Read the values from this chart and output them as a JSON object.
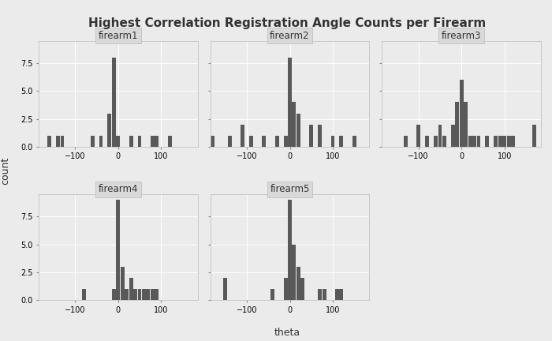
{
  "title": "Highest Correlation Registration Angle Counts per Firearm",
  "xlabel": "theta",
  "ylabel": "count",
  "bar_color": "#595959",
  "bg_color": "#EBEBEB",
  "panel_bg": "#EBEBEB",
  "strip_bg": "#D9D9D9",
  "grid_color": "#FFFFFF",
  "ylim": [
    0,
    9.5
  ],
  "yticks": [
    0.0,
    2.5,
    5.0,
    7.5
  ],
  "xticks": [
    -100,
    0,
    100
  ],
  "bin_edges": [
    -185,
    -175,
    -165,
    -155,
    -145,
    -135,
    -125,
    -115,
    -105,
    -95,
    -85,
    -75,
    -65,
    -55,
    -45,
    -35,
    -25,
    -15,
    -5,
    5,
    15,
    25,
    35,
    45,
    55,
    65,
    75,
    85,
    95,
    105,
    115,
    125,
    135,
    145,
    155,
    165,
    175,
    185
  ],
  "firearm_counts": {
    "firearm1": [
      0,
      0,
      1,
      0,
      1,
      1,
      0,
      0,
      0,
      0,
      0,
      0,
      1,
      0,
      1,
      0,
      3,
      8,
      1,
      0,
      0,
      1,
      0,
      1,
      0,
      0,
      1,
      1,
      0,
      0,
      1,
      0,
      0,
      0,
      0,
      0,
      0
    ],
    "firearm2": [
      1,
      0,
      0,
      0,
      1,
      0,
      0,
      2,
      0,
      1,
      0,
      0,
      1,
      0,
      0,
      1,
      0,
      1,
      8,
      4,
      3,
      0,
      0,
      2,
      0,
      2,
      0,
      0,
      1,
      0,
      1,
      0,
      0,
      1,
      0,
      0,
      0
    ],
    "firearm3": [
      0,
      0,
      0,
      0,
      0,
      1,
      0,
      0,
      2,
      0,
      1,
      0,
      1,
      2,
      1,
      0,
      2,
      4,
      6,
      4,
      1,
      1,
      1,
      0,
      1,
      0,
      1,
      1,
      1,
      1,
      1,
      0,
      0,
      0,
      0,
      2,
      0
    ],
    "firearm4": [
      0,
      0,
      0,
      0,
      0,
      0,
      0,
      0,
      0,
      0,
      1,
      0,
      0,
      0,
      0,
      0,
      0,
      1,
      9,
      3,
      1,
      2,
      1,
      1,
      1,
      1,
      1,
      1,
      0,
      0,
      0,
      0,
      0,
      0,
      0,
      0,
      0
    ],
    "firearm5": [
      0,
      0,
      0,
      2,
      0,
      0,
      0,
      0,
      0,
      0,
      0,
      0,
      0,
      0,
      1,
      0,
      0,
      2,
      9,
      5,
      3,
      2,
      0,
      0,
      0,
      1,
      1,
      0,
      0,
      1,
      1,
      0,
      0,
      0,
      0,
      0,
      0
    ]
  },
  "firearm_names": [
    "firearm1",
    "firearm2",
    "firearm3",
    "firearm4",
    "firearm5"
  ],
  "title_fontsize": 11,
  "strip_fontsize": 8.5,
  "tick_fontsize": 7,
  "label_fontsize": 9
}
